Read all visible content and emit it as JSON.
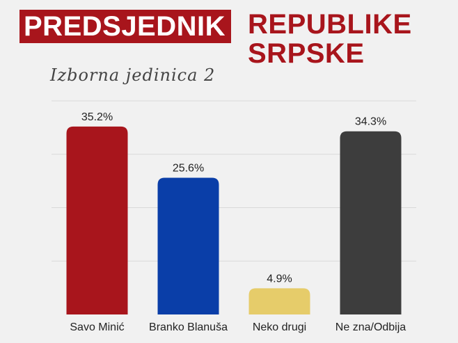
{
  "header": {
    "title_highlight": "PREDSJEDNIK",
    "title_rest": "REPUBLIKE SRPSKE",
    "subtitle": "Izborna jedinica 2"
  },
  "chart_data": {
    "type": "bar",
    "categories": [
      "Savo Minić",
      "Branko Blanuša",
      "Neko drugi",
      "Ne zna/Odbija"
    ],
    "values": [
      35.2,
      25.6,
      4.9,
      34.3
    ],
    "value_labels": [
      "35.2%",
      "25.6%",
      "4.9%",
      "34.3%"
    ],
    "colors": [
      "#a8151c",
      "#0a3ea8",
      "#e6cc6a",
      "#3d3d3d"
    ],
    "title": "",
    "xlabel": "",
    "ylabel": "",
    "ylim": [
      0,
      40
    ],
    "grid": true,
    "legend": "none"
  }
}
